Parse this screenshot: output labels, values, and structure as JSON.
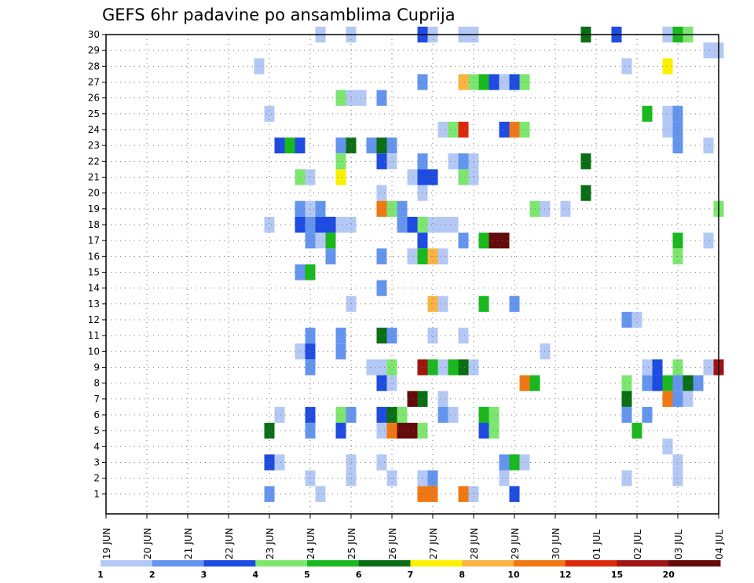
{
  "chart_data": {
    "type": "heatmap",
    "title": "GEFS 6hr padavine po ansamblima Cuprija",
    "xlabel": "",
    "ylabel": "",
    "x_tick_labels": [
      "19 JUN",
      "20 JUN",
      "21 JUN",
      "22 JUN",
      "23 JUN",
      "24 JUN",
      "25 JUN",
      "26 JUN",
      "27 JUN",
      "28 JUN",
      "29 JUN",
      "30 JUN",
      "01 JUL",
      "02 JUL",
      "03 JUL",
      "04 JUL"
    ],
    "y_tick_labels": [
      "1",
      "2",
      "3",
      "4",
      "5",
      "6",
      "7",
      "8",
      "9",
      "10",
      "11",
      "12",
      "13",
      "14",
      "15",
      "16",
      "17",
      "18",
      "19",
      "20",
      "21",
      "22",
      "23",
      "24",
      "25",
      "26",
      "27",
      "28",
      "29",
      "30"
    ],
    "xlim_days": [
      0,
      15
    ],
    "ylim_members": [
      0,
      30
    ],
    "x_unit": "days since 19 JUN, 6-hour steps",
    "grid": true,
    "legend_position": "bottom",
    "color_levels": [
      1,
      2,
      3,
      4,
      5,
      6,
      7,
      8,
      10,
      12,
      15,
      20
    ],
    "color_scale": [
      "#b4c8f5",
      "#6495ee",
      "#1e4be1",
      "#7de66e",
      "#19b91e",
      "#0a6e14",
      "#faf000",
      "#fab441",
      "#f07814",
      "#dc280a",
      "#a01414",
      "#640a0a"
    ],
    "cells": [
      [
        30,
        5.25,
        0
      ],
      [
        30,
        6.0,
        0
      ],
      [
        30,
        7.75,
        2
      ],
      [
        30,
        8.0,
        0
      ],
      [
        30,
        8.75,
        0
      ],
      [
        30,
        9.0,
        0
      ],
      [
        30,
        11.75,
        5
      ],
      [
        30,
        12.5,
        2
      ],
      [
        30,
        13.75,
        0
      ],
      [
        30,
        14.0,
        4
      ],
      [
        30,
        14.25,
        3
      ],
      [
        29,
        14.75,
        0
      ],
      [
        29,
        15.0,
        0
      ],
      [
        28,
        3.75,
        0
      ],
      [
        28,
        12.75,
        0
      ],
      [
        28,
        13.75,
        6
      ],
      [
        27,
        7.75,
        1
      ],
      [
        27,
        8.75,
        7
      ],
      [
        27,
        9.0,
        3
      ],
      [
        27,
        9.25,
        4
      ],
      [
        27,
        9.5,
        2
      ],
      [
        27,
        9.75,
        0
      ],
      [
        27,
        10.0,
        2
      ],
      [
        27,
        10.25,
        3
      ],
      [
        26,
        5.75,
        3
      ],
      [
        26,
        6.0,
        0
      ],
      [
        26,
        6.25,
        0
      ],
      [
        26,
        6.75,
        1
      ],
      [
        25,
        4.0,
        0
      ],
      [
        25,
        13.25,
        4
      ],
      [
        25,
        13.75,
        0
      ],
      [
        25,
        14.0,
        1
      ],
      [
        24,
        8.25,
        0
      ],
      [
        24,
        8.5,
        3
      ],
      [
        24,
        8.75,
        9
      ],
      [
        24,
        9.75,
        2
      ],
      [
        24,
        10.0,
        8
      ],
      [
        24,
        10.25,
        3
      ],
      [
        24,
        13.75,
        0
      ],
      [
        24,
        14.0,
        1
      ],
      [
        23,
        4.25,
        2
      ],
      [
        23,
        4.5,
        4
      ],
      [
        23,
        4.75,
        2
      ],
      [
        23,
        5.75,
        1
      ],
      [
        23,
        6.0,
        5
      ],
      [
        23,
        6.5,
        1
      ],
      [
        23,
        6.75,
        5
      ],
      [
        23,
        7.0,
        1
      ],
      [
        23,
        14.0,
        1
      ],
      [
        23,
        14.75,
        0
      ],
      [
        22,
        5.75,
        3
      ],
      [
        22,
        6.75,
        2
      ],
      [
        22,
        7.0,
        0
      ],
      [
        22,
        7.75,
        1
      ],
      [
        22,
        8.5,
        0
      ],
      [
        22,
        8.75,
        1
      ],
      [
        22,
        9.0,
        0
      ],
      [
        22,
        11.75,
        5
      ],
      [
        21,
        4.75,
        3
      ],
      [
        21,
        5.0,
        0
      ],
      [
        21,
        5.75,
        6
      ],
      [
        21,
        7.5,
        0
      ],
      [
        21,
        7.75,
        2
      ],
      [
        21,
        8.0,
        2
      ],
      [
        21,
        8.75,
        3
      ],
      [
        21,
        9.0,
        0
      ],
      [
        20,
        6.75,
        0
      ],
      [
        20,
        7.75,
        0
      ],
      [
        20,
        11.75,
        5
      ],
      [
        19,
        4.75,
        1
      ],
      [
        19,
        5.0,
        0
      ],
      [
        19,
        5.25,
        1
      ],
      [
        19,
        6.75,
        8
      ],
      [
        19,
        7.0,
        3
      ],
      [
        19,
        7.25,
        1
      ],
      [
        19,
        10.5,
        3
      ],
      [
        19,
        10.75,
        0
      ],
      [
        19,
        11.25,
        0
      ],
      [
        19,
        15.0,
        3
      ],
      [
        18,
        4.0,
        0
      ],
      [
        18,
        4.75,
        2
      ],
      [
        18,
        5.0,
        1
      ],
      [
        18,
        5.25,
        2
      ],
      [
        18,
        5.5,
        2
      ],
      [
        18,
        5.75,
        0
      ],
      [
        18,
        6.0,
        0
      ],
      [
        18,
        7.25,
        1
      ],
      [
        18,
        7.5,
        2
      ],
      [
        18,
        7.75,
        3
      ],
      [
        18,
        8.0,
        0
      ],
      [
        18,
        8.25,
        0
      ],
      [
        18,
        8.5,
        0
      ],
      [
        17,
        5.0,
        1
      ],
      [
        17,
        5.25,
        0
      ],
      [
        17,
        5.5,
        4
      ],
      [
        17,
        7.75,
        2
      ],
      [
        17,
        8.75,
        1
      ],
      [
        17,
        9.25,
        4
      ],
      [
        17,
        9.5,
        11
      ],
      [
        17,
        9.75,
        11
      ],
      [
        17,
        14.0,
        4
      ],
      [
        17,
        14.75,
        0
      ],
      [
        16,
        5.5,
        1
      ],
      [
        16,
        6.75,
        1
      ],
      [
        16,
        7.5,
        0
      ],
      [
        16,
        7.75,
        4
      ],
      [
        16,
        8.0,
        7
      ],
      [
        16,
        8.25,
        0
      ],
      [
        16,
        14.0,
        3
      ],
      [
        15,
        4.75,
        1
      ],
      [
        15,
        5.0,
        4
      ],
      [
        14,
        6.75,
        1
      ],
      [
        13,
        6.0,
        0
      ],
      [
        13,
        8.0,
        7
      ],
      [
        13,
        8.25,
        0
      ],
      [
        13,
        9.25,
        4
      ],
      [
        13,
        10.0,
        1
      ],
      [
        12,
        12.75,
        1
      ],
      [
        12,
        13.0,
        0
      ],
      [
        11,
        5.0,
        1
      ],
      [
        11,
        5.75,
        1
      ],
      [
        11,
        6.75,
        5
      ],
      [
        11,
        7.0,
        1
      ],
      [
        11,
        8.0,
        0
      ],
      [
        11,
        8.75,
        0
      ],
      [
        10,
        4.75,
        0
      ],
      [
        10,
        5.0,
        2
      ],
      [
        10,
        5.75,
        1
      ],
      [
        10,
        10.75,
        0
      ],
      [
        9,
        5.0,
        1
      ],
      [
        9,
        6.5,
        0
      ],
      [
        9,
        6.75,
        0
      ],
      [
        9,
        7.0,
        3
      ],
      [
        9,
        7.75,
        10
      ],
      [
        9,
        8.0,
        4
      ],
      [
        9,
        8.25,
        0
      ],
      [
        9,
        8.5,
        4
      ],
      [
        9,
        8.75,
        5
      ],
      [
        9,
        9.0,
        0
      ],
      [
        9,
        13.25,
        0
      ],
      [
        9,
        13.5,
        2
      ],
      [
        9,
        14.0,
        3
      ],
      [
        9,
        14.75,
        0
      ],
      [
        9,
        15.0,
        10
      ],
      [
        8,
        6.75,
        2
      ],
      [
        8,
        7.0,
        0
      ],
      [
        8,
        10.25,
        8
      ],
      [
        8,
        10.5,
        4
      ],
      [
        8,
        12.75,
        3
      ],
      [
        8,
        13.25,
        1
      ],
      [
        8,
        13.5,
        2
      ],
      [
        8,
        13.75,
        4
      ],
      [
        8,
        14.0,
        1
      ],
      [
        8,
        14.25,
        5
      ],
      [
        8,
        14.5,
        1
      ],
      [
        7,
        7.5,
        11
      ],
      [
        7,
        7.75,
        5
      ],
      [
        7,
        8.25,
        0
      ],
      [
        7,
        12.75,
        5
      ],
      [
        7,
        13.75,
        8
      ],
      [
        7,
        14.0,
        1
      ],
      [
        7,
        14.25,
        0
      ],
      [
        6,
        4.25,
        0
      ],
      [
        6,
        5.0,
        2
      ],
      [
        6,
        5.75,
        3
      ],
      [
        6,
        6.0,
        1
      ],
      [
        6,
        6.75,
        2
      ],
      [
        6,
        7.0,
        5
      ],
      [
        6,
        7.25,
        3
      ],
      [
        6,
        8.25,
        1
      ],
      [
        6,
        8.5,
        0
      ],
      [
        6,
        9.25,
        4
      ],
      [
        6,
        9.5,
        3
      ],
      [
        6,
        12.75,
        1
      ],
      [
        6,
        13.25,
        1
      ],
      [
        5,
        4.0,
        5
      ],
      [
        5,
        5.0,
        1
      ],
      [
        5,
        5.75,
        2
      ],
      [
        5,
        6.75,
        0
      ],
      [
        5,
        7.0,
        8
      ],
      [
        5,
        7.25,
        11
      ],
      [
        5,
        7.5,
        11
      ],
      [
        5,
        7.75,
        3
      ],
      [
        5,
        9.25,
        2
      ],
      [
        5,
        9.5,
        3
      ],
      [
        5,
        13.0,
        4
      ],
      [
        4,
        13.75,
        0
      ],
      [
        3,
        4.0,
        2
      ],
      [
        3,
        4.25,
        0
      ],
      [
        3,
        6.0,
        0
      ],
      [
        3,
        6.75,
        0
      ],
      [
        3,
        9.75,
        1
      ],
      [
        3,
        10.0,
        4
      ],
      [
        3,
        10.25,
        0
      ],
      [
        3,
        14.0,
        0
      ],
      [
        2,
        5.0,
        0
      ],
      [
        2,
        6.0,
        0
      ],
      [
        2,
        7.0,
        0
      ],
      [
        2,
        7.75,
        0
      ],
      [
        2,
        8.0,
        1
      ],
      [
        2,
        9.75,
        0
      ],
      [
        2,
        12.75,
        0
      ],
      [
        2,
        14.0,
        0
      ],
      [
        1,
        4.0,
        1
      ],
      [
        1,
        5.25,
        0
      ],
      [
        1,
        7.75,
        8
      ],
      [
        1,
        8.0,
        8
      ],
      [
        1,
        8.75,
        8
      ],
      [
        1,
        9.0,
        0
      ],
      [
        1,
        10.0,
        2
      ]
    ]
  }
}
